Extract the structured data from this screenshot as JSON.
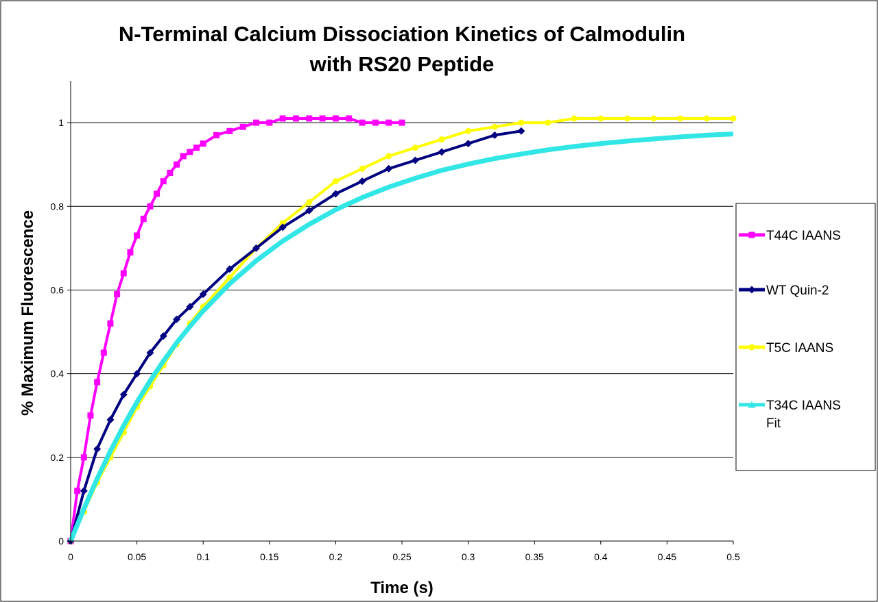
{
  "chart_data": {
    "type": "line",
    "title": [
      "N-Terminal Calcium Dissociation Kinetics of Calmodulin",
      "with RS20 Peptide"
    ],
    "xlabel": "Time (s)",
    "ylabel": "% Maximum Fluorescence",
    "xlim": [
      0,
      0.5
    ],
    "ylim": [
      0,
      1.1
    ],
    "x_ticks": [
      "0",
      "0.05",
      "0.1",
      "0.15",
      "0.2",
      "0.25",
      "0.3",
      "0.35",
      "0.4",
      "0.45",
      "0.5"
    ],
    "y_ticks": [
      "0",
      "0.2",
      "0.4",
      "0.6",
      "0.8",
      "1"
    ],
    "grid": "horizontal",
    "legend_position": "right",
    "series": [
      {
        "name": "T44C IAANS",
        "color": "#ff00ff",
        "marker": "square",
        "x": [
          0,
          0.005,
          0.01,
          0.015,
          0.02,
          0.025,
          0.03,
          0.035,
          0.04,
          0.045,
          0.05,
          0.055,
          0.06,
          0.065,
          0.07,
          0.075,
          0.08,
          0.085,
          0.09,
          0.095,
          0.1,
          0.11,
          0.12,
          0.13,
          0.14,
          0.15,
          0.16,
          0.17,
          0.18,
          0.19,
          0.2,
          0.21,
          0.22,
          0.23,
          0.24,
          0.25
        ],
        "y": [
          0,
          0.12,
          0.2,
          0.3,
          0.38,
          0.45,
          0.52,
          0.59,
          0.64,
          0.69,
          0.73,
          0.77,
          0.8,
          0.83,
          0.86,
          0.88,
          0.9,
          0.92,
          0.93,
          0.94,
          0.95,
          0.97,
          0.98,
          0.99,
          1.0,
          1.0,
          1.01,
          1.01,
          1.01,
          1.01,
          1.01,
          1.01,
          1.0,
          1.0,
          1.0,
          1.0
        ]
      },
      {
        "name": "WT Quin-2",
        "color": "#000080",
        "marker": "diamond",
        "x": [
          0,
          0.01,
          0.02,
          0.03,
          0.04,
          0.05,
          0.06,
          0.07,
          0.08,
          0.09,
          0.1,
          0.12,
          0.14,
          0.16,
          0.18,
          0.2,
          0.22,
          0.24,
          0.26,
          0.28,
          0.3,
          0.32,
          0.34
        ],
        "y": [
          0,
          0.12,
          0.22,
          0.29,
          0.35,
          0.4,
          0.45,
          0.49,
          0.53,
          0.56,
          0.59,
          0.65,
          0.7,
          0.75,
          0.79,
          0.83,
          0.86,
          0.89,
          0.91,
          0.93,
          0.95,
          0.97,
          0.98
        ]
      },
      {
        "name": "T5C IAANS",
        "color": "#ffff00",
        "marker": "circle",
        "x": [
          0,
          0.01,
          0.02,
          0.03,
          0.04,
          0.05,
          0.06,
          0.07,
          0.08,
          0.09,
          0.1,
          0.12,
          0.14,
          0.16,
          0.18,
          0.2,
          0.22,
          0.24,
          0.26,
          0.28,
          0.3,
          0.32,
          0.34,
          0.36,
          0.38,
          0.4,
          0.42,
          0.44,
          0.46,
          0.48,
          0.5
        ],
        "y": [
          0,
          0.07,
          0.14,
          0.2,
          0.26,
          0.32,
          0.37,
          0.42,
          0.47,
          0.52,
          0.56,
          0.63,
          0.7,
          0.76,
          0.81,
          0.86,
          0.89,
          0.92,
          0.94,
          0.96,
          0.98,
          0.99,
          1.0,
          1.0,
          1.01,
          1.01,
          1.01,
          1.01,
          1.01,
          1.01,
          1.01
        ]
      },
      {
        "name": "T34C IAANS Fit",
        "legend_lines": [
          "T34C IAANS",
          "Fit"
        ],
        "color": "#33e6e6",
        "marker": "triangle",
        "x": [
          0,
          0.01,
          0.02,
          0.03,
          0.04,
          0.05,
          0.06,
          0.07,
          0.08,
          0.09,
          0.1,
          0.12,
          0.14,
          0.16,
          0.18,
          0.2,
          0.22,
          0.24,
          0.26,
          0.28,
          0.3,
          0.32,
          0.34,
          0.36,
          0.38,
          0.4,
          0.42,
          0.44,
          0.46,
          0.48,
          0.5
        ],
        "y": [
          0,
          0.077,
          0.149,
          0.215,
          0.276,
          0.332,
          0.383,
          0.43,
          0.474,
          0.513,
          0.55,
          0.615,
          0.67,
          0.717,
          0.757,
          0.792,
          0.821,
          0.846,
          0.867,
          0.886,
          0.901,
          0.914,
          0.925,
          0.935,
          0.943,
          0.95,
          0.956,
          0.961,
          0.966,
          0.97,
          0.973
        ]
      }
    ]
  }
}
